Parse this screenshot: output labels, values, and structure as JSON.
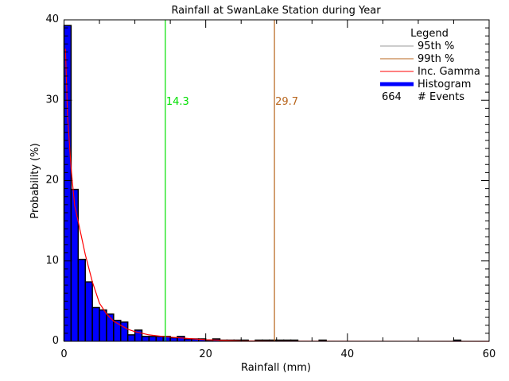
{
  "chart_data": {
    "type": "bar",
    "title": "Rainfall at SwanLake Station during Year",
    "xlabel": "Rainfall (mm)",
    "ylabel": "Probability (%)",
    "xlim": [
      0,
      60
    ],
    "ylim": [
      0,
      40
    ],
    "x_ticks": [
      "0",
      "20",
      "40",
      "60"
    ],
    "y_ticks": [
      "0",
      "10",
      "20",
      "30",
      "40"
    ],
    "grid": false,
    "bin_width": 1,
    "histogram": {
      "name": "Histogram",
      "color": "#0000ff",
      "bin_starts": [
        0,
        1,
        2,
        3,
        4,
        5,
        6,
        7,
        8,
        9,
        10,
        11,
        12,
        13,
        14,
        15,
        16,
        17,
        18,
        19,
        20,
        21,
        22,
        23,
        24,
        25,
        27,
        28,
        29,
        30,
        31,
        32,
        36,
        55
      ],
      "values": [
        39.3,
        18.9,
        10.2,
        7.4,
        4.2,
        3.9,
        3.4,
        2.6,
        2.4,
        0.8,
        1.4,
        0.6,
        0.6,
        0.6,
        0.6,
        0.45,
        0.6,
        0.3,
        0.3,
        0.3,
        0.15,
        0.3,
        0.15,
        0.15,
        0.15,
        0.15,
        0.15,
        0.15,
        0.15,
        0.15,
        0.15,
        0.15,
        0.15,
        0.15
      ]
    },
    "gamma_curve": {
      "name": "Inc. Gamma",
      "color": "#ff0000",
      "x": [
        0.2,
        0.5,
        1,
        1.5,
        2,
        3,
        4,
        5,
        6,
        7,
        8,
        9,
        10,
        12,
        14,
        16,
        20,
        25,
        30,
        60
      ],
      "y": [
        36.4,
        28,
        21.5,
        16.9,
        14.9,
        10.8,
        7.4,
        4.75,
        3.4,
        2.5,
        2.0,
        1.5,
        1.2,
        0.8,
        0.6,
        0.45,
        0.2,
        0.05,
        0.01,
        0
      ]
    },
    "percentiles": [
      {
        "name": "95th %",
        "value": 14.3,
        "label": "14.3",
        "color": "#00e000",
        "legend_color": "#999999"
      },
      {
        "name": "99th %",
        "value": 29.7,
        "label": "29.7",
        "color": "#b8651c",
        "legend_color": "#b8651c"
      }
    ],
    "legend": {
      "title": "Legend",
      "placement": "top-right",
      "events_count": "664",
      "events_label": "# Events"
    }
  }
}
